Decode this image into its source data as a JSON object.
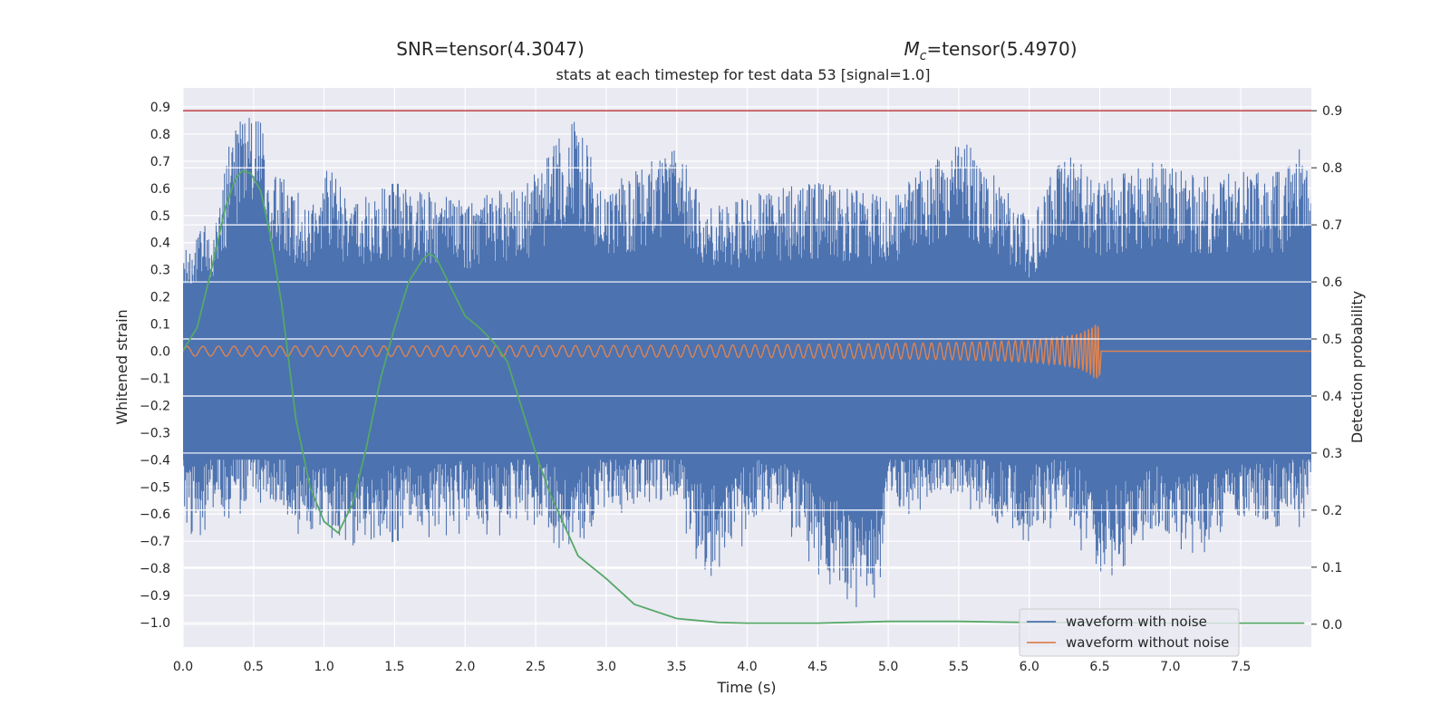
{
  "figure": {
    "snr_text": "SNR=tensor(4.3047)",
    "mc_symbol": "M",
    "mc_subscript": "c",
    "mc_value": "=tensor(5.4970)"
  },
  "chart_data": {
    "type": "line",
    "title": "stats at each timestep for test data 53 [signal=1.0]",
    "xlabel": "Time (s)",
    "ylabel": "Whitened strain",
    "y2label": "Detection probability",
    "xlim": [
      0.0,
      8.0
    ],
    "ylim": [
      -1.09,
      0.97
    ],
    "y2lim": [
      -0.04,
      0.94
    ],
    "x_ticks": [
      "0.0",
      "0.5",
      "1.0",
      "1.5",
      "2.0",
      "2.5",
      "3.0",
      "3.5",
      "4.0",
      "4.5",
      "5.0",
      "5.5",
      "6.0",
      "6.5",
      "7.0",
      "7.5"
    ],
    "y_ticks": [
      "0.9",
      "0.8",
      "0.7",
      "0.6",
      "0.5",
      "0.4",
      "0.3",
      "0.2",
      "0.1",
      "0.0",
      "−0.1",
      "−0.2",
      "−0.3",
      "−0.4",
      "−0.5",
      "−0.6",
      "−0.7",
      "−0.8",
      "−0.9",
      "−1.0"
    ],
    "y2_ticks": [
      "0.9",
      "0.8",
      "0.7",
      "0.6",
      "0.5",
      "0.4",
      "0.3",
      "0.2",
      "0.1",
      "0.0"
    ],
    "grid": true,
    "legend_position": "lower-right",
    "colors": {
      "noise": "#4c72b0",
      "clean": "#dd8452",
      "probability": "#55a868",
      "threshold": "#c44e52",
      "axes_bg": "#eaeaf2",
      "grid": "#ffffff"
    },
    "series": [
      {
        "name": "waveform with noise",
        "axis": "left",
        "style": "dense noise envelope",
        "x": [
          0.0,
          0.02,
          0.25,
          0.35,
          0.53,
          0.6,
          0.75,
          0.95,
          1.0,
          1.2,
          1.5,
          2.0,
          2.3,
          2.45,
          2.78,
          3.0,
          3.5,
          3.7,
          4.2,
          4.5,
          4.9,
          5.0,
          5.5,
          5.8,
          6.0,
          6.25,
          6.5,
          6.9,
          7.2,
          7.5,
          7.8,
          7.95,
          8.0
        ],
        "upper": [
          0.42,
          0.38,
          0.52,
          0.83,
          0.88,
          0.74,
          0.6,
          0.55,
          0.7,
          0.55,
          0.62,
          0.55,
          0.6,
          0.62,
          0.87,
          0.6,
          0.77,
          0.52,
          0.6,
          0.62,
          0.58,
          0.55,
          0.8,
          0.62,
          0.48,
          0.75,
          0.62,
          0.7,
          0.64,
          0.66,
          0.66,
          0.77,
          0.58
        ],
        "lower": [
          -0.55,
          -0.74,
          -0.6,
          -0.62,
          -0.55,
          -0.58,
          -0.65,
          -0.72,
          -0.66,
          -0.76,
          -0.7,
          -0.67,
          -0.68,
          -0.62,
          -0.78,
          -0.6,
          -0.58,
          -0.85,
          -0.6,
          -0.82,
          -1.0,
          -0.62,
          -0.55,
          -0.68,
          -0.7,
          -0.62,
          -0.86,
          -0.7,
          -0.75,
          -0.68,
          -0.64,
          -0.65,
          -0.55
        ]
      },
      {
        "name": "waveform without noise",
        "axis": "left",
        "style": "chirp envelope",
        "x": [
          0.0,
          1.0,
          2.0,
          3.0,
          4.0,
          5.0,
          5.5,
          6.0,
          6.2,
          6.35,
          6.43,
          6.48,
          6.5,
          6.51,
          8.0
        ],
        "amplitude": [
          0.018,
          0.019,
          0.02,
          0.021,
          0.023,
          0.028,
          0.032,
          0.04,
          0.05,
          0.065,
          0.085,
          0.11,
          0.09,
          0.0,
          0.0
        ]
      },
      {
        "name": "",
        "axis": "right",
        "style": "line",
        "x": [
          0.0,
          0.1,
          0.2,
          0.3,
          0.37,
          0.42,
          0.48,
          0.55,
          0.62,
          0.7,
          0.8,
          0.9,
          1.0,
          1.1,
          1.2,
          1.3,
          1.4,
          1.5,
          1.6,
          1.7,
          1.75,
          1.8,
          1.9,
          2.0,
          2.1,
          2.2,
          2.3,
          2.4,
          2.5,
          2.6,
          2.8,
          3.0,
          3.2,
          3.5,
          3.8,
          4.0,
          4.5,
          5.0,
          5.5,
          6.0,
          6.5,
          7.0,
          7.5,
          7.95
        ],
        "y": [
          0.48,
          0.52,
          0.62,
          0.73,
          0.78,
          0.795,
          0.79,
          0.76,
          0.68,
          0.56,
          0.36,
          0.24,
          0.18,
          0.16,
          0.21,
          0.31,
          0.43,
          0.52,
          0.6,
          0.64,
          0.65,
          0.64,
          0.59,
          0.54,
          0.52,
          0.495,
          0.46,
          0.38,
          0.3,
          0.23,
          0.12,
          0.08,
          0.035,
          0.01,
          0.003,
          0.002,
          0.002,
          0.005,
          0.005,
          0.003,
          0.003,
          0.002,
          0.002,
          0.002
        ]
      },
      {
        "name": "",
        "axis": "right",
        "style": "hline",
        "y": 0.9
      }
    ]
  }
}
